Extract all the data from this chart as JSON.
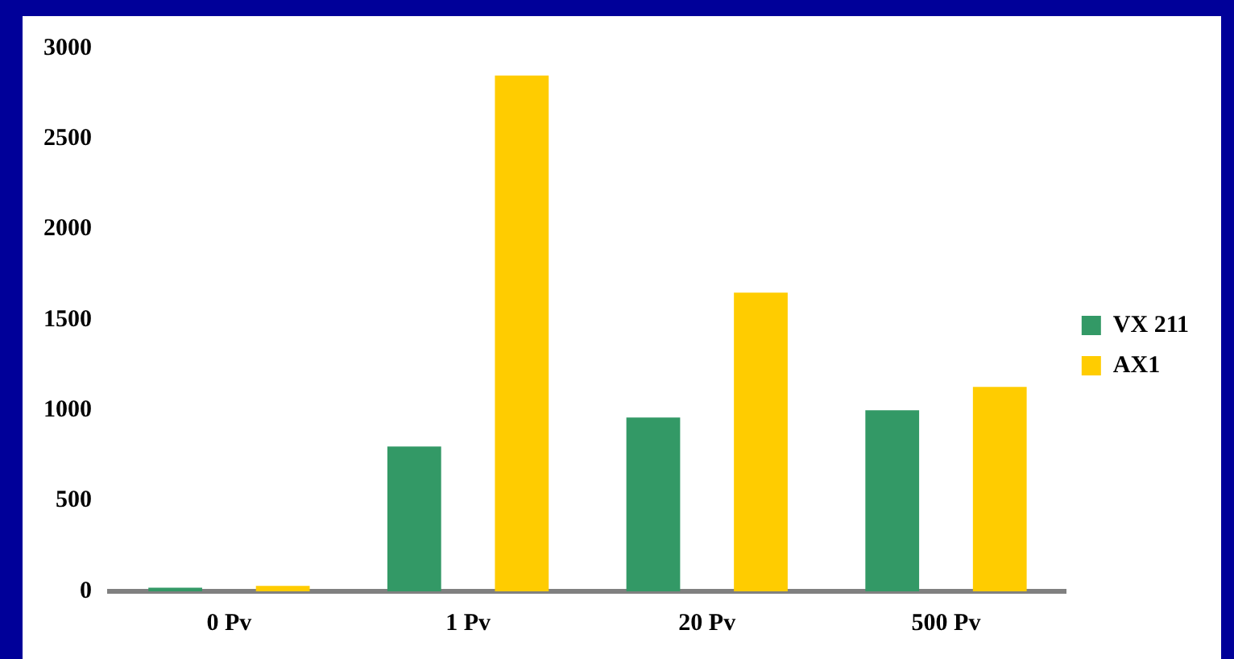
{
  "chart_data": {
    "type": "bar",
    "categories": [
      "0 Pv",
      "1 Pv",
      "20 Pv",
      "500 Pv"
    ],
    "series": [
      {
        "name": "VX 211",
        "color": "#339966",
        "values": [
          20,
          800,
          960,
          1000
        ]
      },
      {
        "name": "AX1",
        "color": "#ffcc00",
        "values": [
          30,
          2850,
          1650,
          1130
        ]
      }
    ],
    "ylim": [
      0,
      3000
    ],
    "yticks": [
      0,
      500,
      1000,
      1500,
      2000,
      2500,
      3000
    ],
    "legend": "right"
  }
}
